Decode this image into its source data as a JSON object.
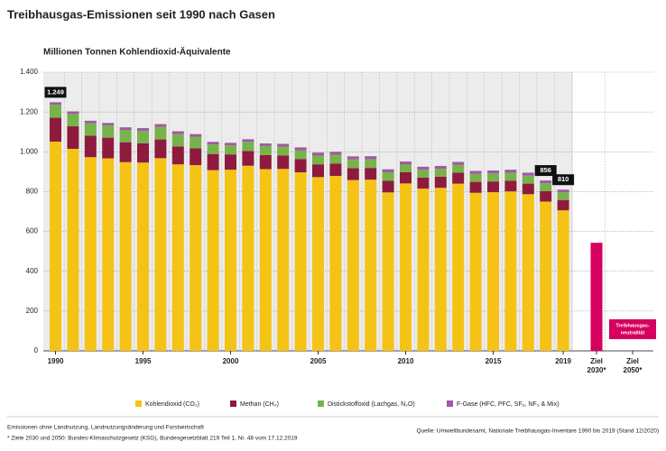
{
  "chart_data": {
    "type": "stacked_bar",
    "title": "Treibhausgas-Emissionen seit 1990 nach Gasen",
    "subtitle": "Millionen Tonnen Kohlendioxid-Äquivalente",
    "categories": [
      "1990",
      null,
      null,
      null,
      null,
      "1995",
      null,
      null,
      null,
      null,
      "2000",
      null,
      null,
      null,
      null,
      "2005",
      null,
      null,
      null,
      null,
      "2010",
      null,
      null,
      null,
      null,
      "2015",
      null,
      null,
      null,
      "2019",
      "Ziel 2030*",
      "Ziel 2050*"
    ],
    "series": [
      {
        "name": "Kohlendioxid (CO₂)",
        "color": "#f5c316",
        "values": [
          1051,
          1015,
          973,
          967,
          948,
          946,
          968,
          937,
          933,
          908,
          910,
          930,
          913,
          914,
          897,
          873,
          879,
          858,
          860,
          796,
          841,
          815,
          819,
          840,
          794,
          797,
          801,
          787,
          750,
          706,
          null,
          null
        ]
      },
      {
        "name": "Methan (CH₄)",
        "color": "#8e1b3e",
        "values": [
          120,
          113,
          108,
          104,
          100,
          97,
          94,
          90,
          85,
          81,
          77,
          74,
          71,
          68,
          66,
          64,
          62,
          60,
          59,
          58,
          57,
          56,
          56,
          55,
          55,
          54,
          54,
          53,
          53,
          52,
          null,
          null
        ]
      },
      {
        "name": "Distickstoffoxid (Lachgas, N₂O)",
        "color": "#77b34a",
        "values": [
          65,
          62,
          62,
          61,
          62,
          62,
          63,
          62,
          58,
          48,
          45,
          46,
          45,
          44,
          45,
          44,
          44,
          44,
          44,
          43,
          38,
          39,
          39,
          39,
          40,
          40,
          40,
          40,
          39,
          38,
          null,
          null
        ]
      },
      {
        "name": "F-Gase (HFC, PFC, SF₆, NF₃ & Mix)",
        "color": "#a05aa5",
        "values": [
          13,
          13,
          13,
          13,
          13,
          14,
          14,
          14,
          13,
          13,
          13,
          13,
          13,
          14,
          14,
          15,
          15,
          15,
          15,
          15,
          15,
          15,
          15,
          15,
          15,
          15,
          15,
          15,
          14,
          14,
          null,
          null
        ]
      }
    ],
    "target": {
      "color": "#d5005f",
      "values": [
        null,
        null,
        null,
        null,
        null,
        null,
        null,
        null,
        null,
        null,
        null,
        null,
        null,
        null,
        null,
        null,
        null,
        null,
        null,
        null,
        null,
        null,
        null,
        null,
        null,
        null,
        null,
        null,
        null,
        null,
        543,
        null
      ]
    },
    "target_label": [
      "Treibhausgas-",
      "neutralität"
    ],
    "total_labels": [
      {
        "index": 0,
        "value": 1249,
        "label": "1.249"
      },
      {
        "index": 28,
        "value": 856,
        "label": "856"
      },
      {
        "index": 29,
        "value": 810,
        "label": "810"
      }
    ],
    "ylim": [
      0,
      1400
    ],
    "yticks": [
      0,
      200,
      400,
      600,
      800,
      {
        "value": 1000,
        "label": "1.000"
      },
      {
        "value": 1200,
        "label": "1.200"
      },
      {
        "value": 1400,
        "label": "1.400"
      }
    ],
    "grid": true,
    "notes": [
      "Emissionen ohne Landnutzung, Landnutzungsänderung und Forstwirtschaft",
      "* Ziele 2030 und 2050: Bundes-Klimaschutzgesetz (KSG), Bundesgesetzblatt 219 Teil 1, Nr. 48 vom 17.12.2019"
    ],
    "source": "Quelle: Umweltbundesamt, Nationale Treibhausgas-Inventare 1990 bis 2019 (Stand 12/2020)"
  }
}
